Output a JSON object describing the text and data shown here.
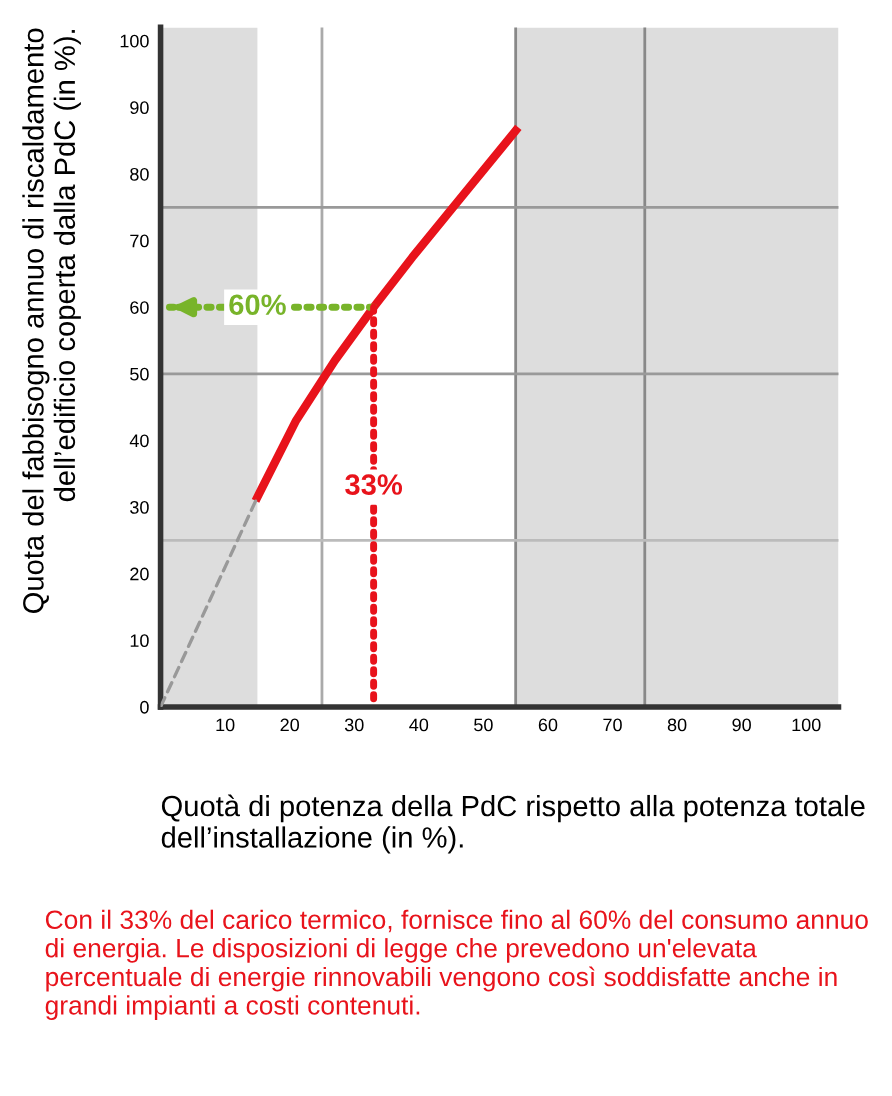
{
  "chart_data": {
    "type": "line",
    "xlabel": "Quotà di potenza della PdC rispetto alla potenza totale dell’installazione (in %).",
    "ylabel": "Quota del fabbisogno annuo di riscaldamento\ndell’edificio coperta dalla PdC (in %).",
    "xlim": [
      0,
      105
    ],
    "ylim": [
      0,
      102
    ],
    "xticks": [
      10,
      20,
      30,
      40,
      50,
      60,
      70,
      80,
      90,
      100
    ],
    "yticks": [
      0,
      10,
      20,
      30,
      40,
      50,
      60,
      70,
      80,
      90,
      100
    ],
    "grid": false,
    "legend": false,
    "marker": "none",
    "series": [
      {
        "color": "#e8131b",
        "x": [
          15,
          21,
          27,
          33,
          39,
          47,
          55
        ],
        "values": [
          31.5,
          43,
          52,
          60,
          67.5,
          77,
          86.5
        ],
        "line_style": "solid"
      },
      {
        "color": "#999999",
        "x": [
          0,
          15
        ],
        "values": [
          0,
          31.5
        ],
        "line_style": "dashed"
      },
      {
        "color": "#78b42a",
        "x": [
          33,
          1
        ],
        "values": [
          60,
          60
        ],
        "line_style": "dotted"
      },
      {
        "color": "#e8131b",
        "x": [
          33,
          33
        ],
        "values": [
          60,
          0
        ],
        "line_style": "dotted"
      }
    ],
    "bands": [
      {
        "axis": "x",
        "from": 0,
        "to": 15,
        "color": "#dddddd"
      },
      {
        "axis": "x",
        "from": 55,
        "to": 105,
        "color": "#dddddd"
      }
    ],
    "ref_lines": [
      {
        "axis": "x",
        "value": 25,
        "color": "#aaaaaa"
      },
      {
        "axis": "x",
        "value": 55,
        "color": "#888888"
      },
      {
        "axis": "x",
        "value": 75,
        "color": "#888888"
      },
      {
        "axis": "y",
        "value": 25,
        "color": "#bbbbbb"
      },
      {
        "axis": "y",
        "value": 50,
        "color": "#999999"
      },
      {
        "axis": "y",
        "value": 75,
        "color": "#999999"
      }
    ],
    "annotations": [
      {
        "text": "60%",
        "x": 15,
        "y": 60
      },
      {
        "text": "33%",
        "x": 33,
        "y": 33
      },
      "Con il 33% del carico termico, fornisce fino al 60% del consumo annuo di energia. Le disposizioni di legge che prevedono un'elevata percentuale di energie rinnovabili vengono così soddisfatte anche in grandi impianti a costi contenuti."
    ]
  }
}
